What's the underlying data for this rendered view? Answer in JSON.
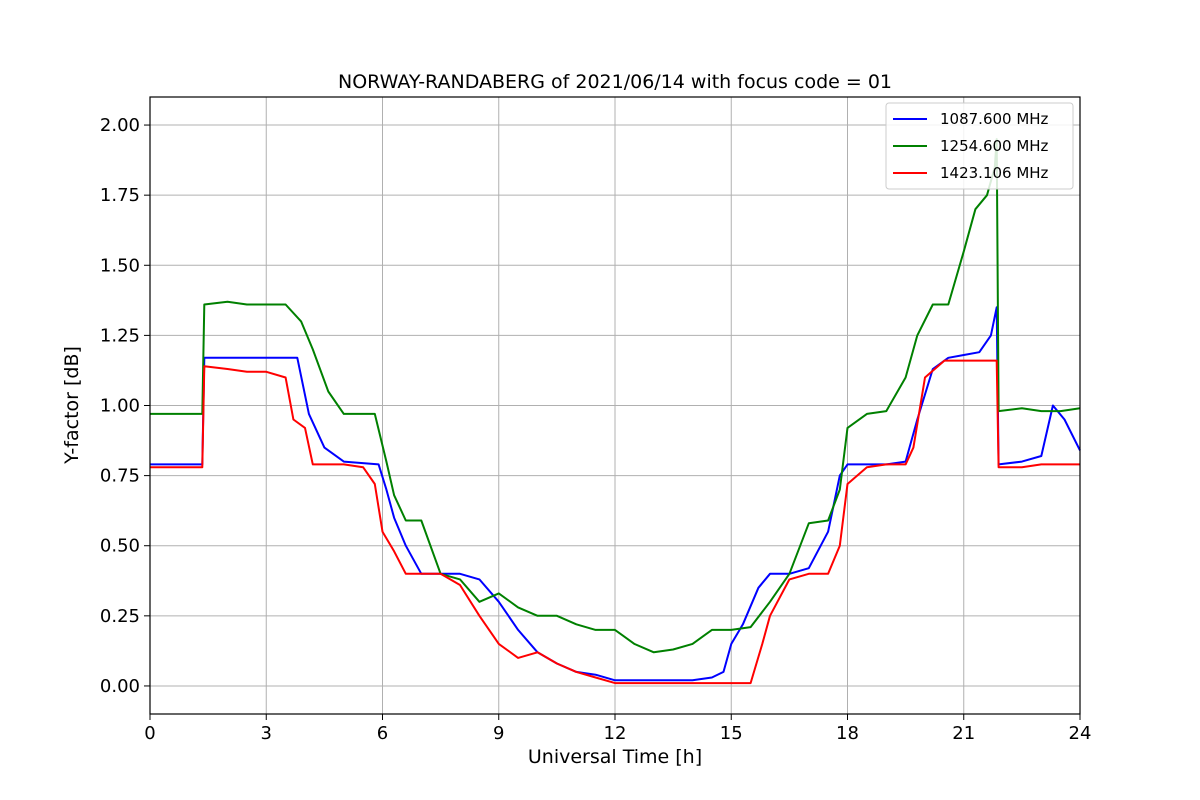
{
  "chart_data": {
    "type": "line",
    "title": "NORWAY-RANDABERG of 2021/06/14 with focus code = 01",
    "xlabel": "Universal Time [h]",
    "ylabel": "Y-factor [dB]",
    "xlim": [
      0,
      24
    ],
    "ylim": [
      -0.1,
      2.1
    ],
    "xticks": [
      0,
      3,
      6,
      9,
      12,
      15,
      18,
      21,
      24
    ],
    "yticks": [
      0.0,
      0.25,
      0.5,
      0.75,
      1.0,
      1.25,
      1.5,
      1.75,
      2.0
    ],
    "xtick_labels": [
      "0",
      "3",
      "6",
      "9",
      "12",
      "15",
      "18",
      "21",
      "24"
    ],
    "ytick_labels": [
      "0.00",
      "0.25",
      "0.50",
      "0.75",
      "1.00",
      "1.25",
      "1.50",
      "1.75",
      "2.00"
    ],
    "grid": true,
    "legend_position": "top-right",
    "series": [
      {
        "name": "1087.600 MHz",
        "color": "#0000ff",
        "x": [
          0,
          1.35,
          1.4,
          3.5,
          3.8,
          4.1,
          4.5,
          5.0,
          5.9,
          6.1,
          6.3,
          6.6,
          7.0,
          7.5,
          8.0,
          8.5,
          9.0,
          9.5,
          10.0,
          10.5,
          11.0,
          11.5,
          12.0,
          12.5,
          13.0,
          13.5,
          14.0,
          14.5,
          14.8,
          15.0,
          15.3,
          15.7,
          16.0,
          16.5,
          17.0,
          17.5,
          17.8,
          18.0,
          18.5,
          19.0,
          19.5,
          19.8,
          20.2,
          20.6,
          21.0,
          21.4,
          21.7,
          21.85,
          21.9,
          22.5,
          23.0,
          23.3,
          23.6,
          24
        ],
        "y": [
          0.79,
          0.79,
          1.17,
          1.17,
          1.17,
          0.97,
          0.85,
          0.8,
          0.79,
          0.7,
          0.6,
          0.5,
          0.4,
          0.4,
          0.4,
          0.38,
          0.3,
          0.2,
          0.12,
          0.08,
          0.05,
          0.04,
          0.02,
          0.02,
          0.02,
          0.02,
          0.02,
          0.03,
          0.05,
          0.15,
          0.22,
          0.35,
          0.4,
          0.4,
          0.42,
          0.55,
          0.75,
          0.79,
          0.79,
          0.79,
          0.8,
          0.95,
          1.13,
          1.17,
          1.18,
          1.19,
          1.25,
          1.35,
          0.79,
          0.8,
          0.82,
          1.0,
          0.95,
          0.84
        ]
      },
      {
        "name": "1254.600 MHz",
        "color": "#008000",
        "x": [
          0,
          1.35,
          1.4,
          2.0,
          2.5,
          3.0,
          3.5,
          3.9,
          4.2,
          4.6,
          5.0,
          5.8,
          6.1,
          6.3,
          6.6,
          7.0,
          7.5,
          8.0,
          8.5,
          9.0,
          9.5,
          10.0,
          10.5,
          11.0,
          11.5,
          12.0,
          12.5,
          13.0,
          13.5,
          14.0,
          14.5,
          15.0,
          15.5,
          16.0,
          16.5,
          17.0,
          17.5,
          17.8,
          18.0,
          18.5,
          19.0,
          19.5,
          19.8,
          20.2,
          20.6,
          21.0,
          21.3,
          21.6,
          21.8,
          21.85,
          21.9,
          22.5,
          23.0,
          23.5,
          24
        ],
        "y": [
          0.97,
          0.97,
          1.36,
          1.37,
          1.36,
          1.36,
          1.36,
          1.3,
          1.2,
          1.05,
          0.97,
          0.97,
          0.8,
          0.68,
          0.59,
          0.59,
          0.4,
          0.38,
          0.3,
          0.33,
          0.28,
          0.25,
          0.25,
          0.22,
          0.2,
          0.2,
          0.15,
          0.12,
          0.13,
          0.15,
          0.2,
          0.2,
          0.21,
          0.3,
          0.4,
          0.58,
          0.59,
          0.7,
          0.92,
          0.97,
          0.98,
          1.1,
          1.25,
          1.36,
          1.36,
          1.55,
          1.7,
          1.75,
          1.85,
          1.95,
          0.98,
          0.99,
          0.98,
          0.98,
          0.99
        ]
      },
      {
        "name": "1423.106 MHz",
        "color": "#ff0000",
        "x": [
          0,
          1.35,
          1.4,
          2.0,
          2.5,
          3.0,
          3.5,
          3.7,
          4.0,
          4.2,
          4.6,
          5.0,
          5.5,
          5.8,
          6.0,
          6.3,
          6.6,
          7.0,
          7.5,
          8.0,
          8.5,
          9.0,
          9.5,
          10.0,
          10.5,
          11.0,
          11.5,
          12.0,
          12.5,
          13.0,
          13.5,
          14.0,
          14.5,
          15.0,
          15.5,
          15.8,
          16.0,
          16.5,
          17.0,
          17.5,
          17.8,
          18.0,
          18.5,
          19.0,
          19.5,
          19.7,
          20.0,
          20.5,
          21.0,
          21.5,
          21.85,
          21.9,
          22.5,
          23.0,
          23.5,
          24
        ],
        "y": [
          0.78,
          0.78,
          1.14,
          1.13,
          1.12,
          1.12,
          1.1,
          0.95,
          0.92,
          0.79,
          0.79,
          0.79,
          0.78,
          0.72,
          0.55,
          0.48,
          0.4,
          0.4,
          0.4,
          0.36,
          0.25,
          0.15,
          0.1,
          0.12,
          0.08,
          0.05,
          0.03,
          0.01,
          0.01,
          0.01,
          0.01,
          0.01,
          0.01,
          0.01,
          0.01,
          0.15,
          0.25,
          0.38,
          0.4,
          0.4,
          0.5,
          0.72,
          0.78,
          0.79,
          0.79,
          0.85,
          1.1,
          1.16,
          1.16,
          1.16,
          1.16,
          0.78,
          0.78,
          0.79,
          0.79,
          0.79
        ]
      }
    ]
  }
}
